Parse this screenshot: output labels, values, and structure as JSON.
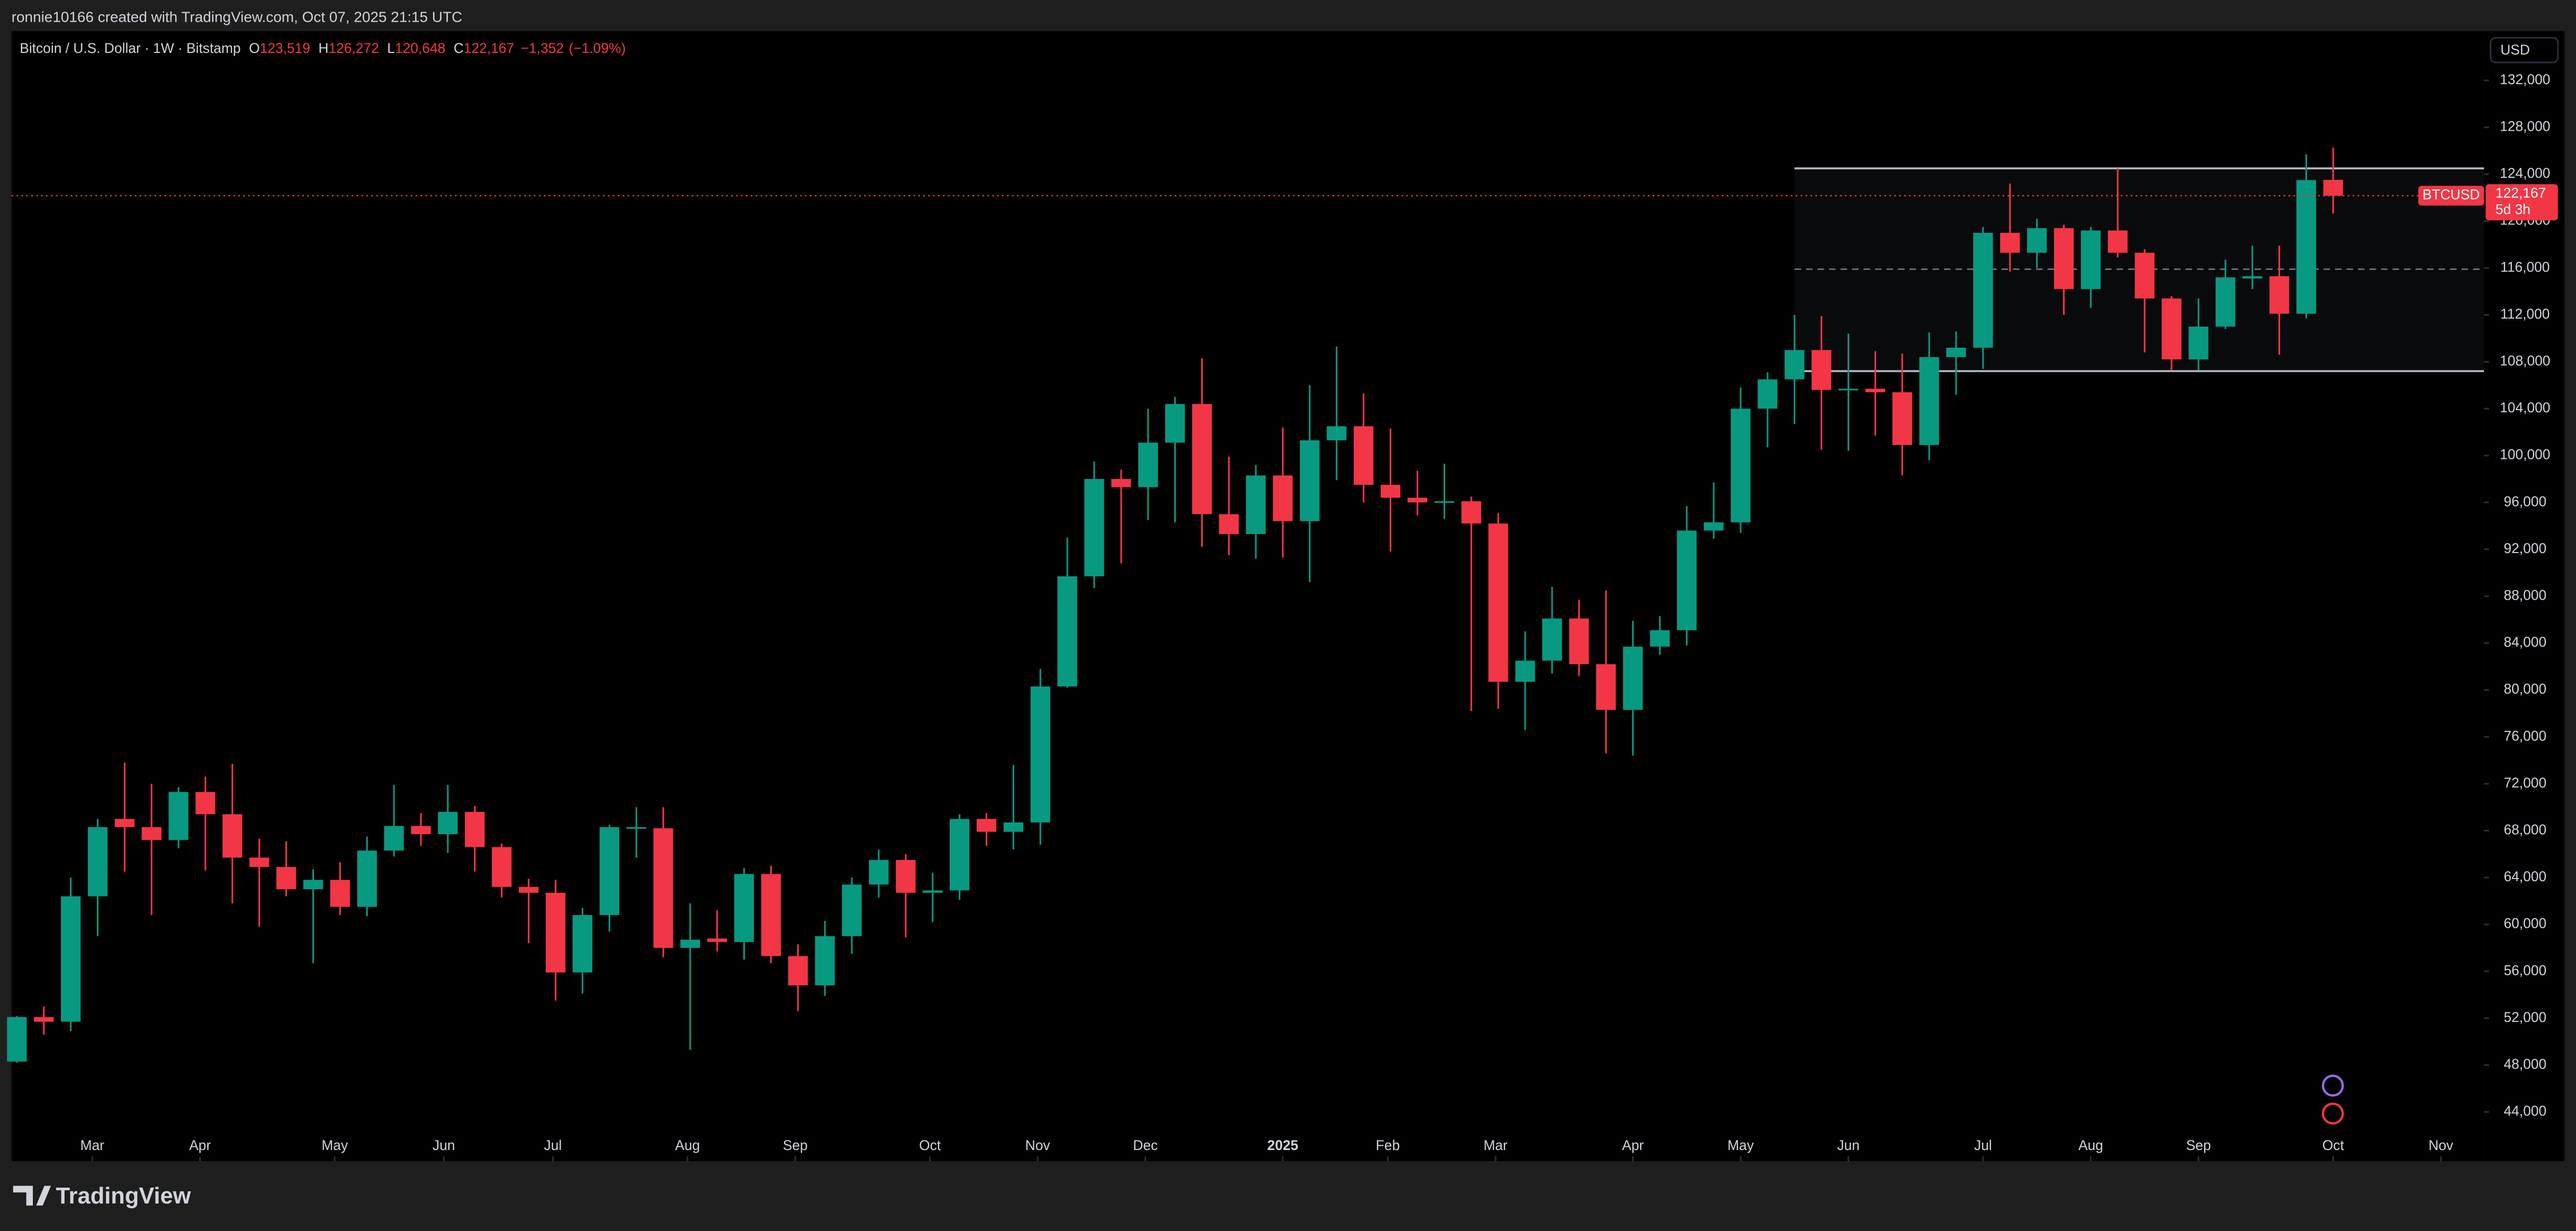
{
  "header": {
    "credit": "ronnie10166 created with TradingView.com, Oct 07, 2025 21:15 UTC"
  },
  "legend": {
    "symbol": "Bitcoin / U.S. Dollar · 1W · Bitstamp",
    "ohlc": [
      {
        "key": "O",
        "value": 123519,
        "label": "123,519"
      },
      {
        "key": "H",
        "value": 126272,
        "label": "126,272"
      },
      {
        "key": "L",
        "value": 120648,
        "label": "120,648"
      },
      {
        "key": "C",
        "value": 122167,
        "label": "122,167"
      }
    ],
    "change": {
      "value": -1352,
      "label": "−1,352"
    },
    "change_pct": {
      "value": -1.09,
      "label": "(−1.09%)"
    }
  },
  "currency_button": "USD",
  "footer": {
    "logo": "TradingView"
  },
  "chart_data": {
    "type": "candlestick",
    "up_color": "#089981",
    "down_color": "#f23645",
    "xlim": [
      -0.2,
      91.6
    ],
    "xticks": [
      {
        "value": 2.8,
        "label": "Mar"
      },
      {
        "value": 6.8,
        "label": "Apr"
      },
      {
        "value": 11.8,
        "label": "May"
      },
      {
        "value": 15.85,
        "label": "Jun"
      },
      {
        "value": 19.9,
        "label": "Jul"
      },
      {
        "value": 24.9,
        "label": "Aug"
      },
      {
        "value": 28.9,
        "label": "Sep"
      },
      {
        "value": 33.9,
        "label": "Oct"
      },
      {
        "value": 37.9,
        "label": "Nov"
      },
      {
        "value": 41.9,
        "label": "Dec"
      },
      {
        "value": 47.0,
        "label": "2025"
      },
      {
        "value": 50.9,
        "label": "Feb"
      },
      {
        "value": 54.9,
        "label": "Mar"
      },
      {
        "value": 60.0,
        "label": "Apr"
      },
      {
        "value": 64.0,
        "label": "May"
      },
      {
        "value": 68.0,
        "label": "Jun"
      },
      {
        "value": 73.0,
        "label": "Jul"
      },
      {
        "value": 77.0,
        "label": "Aug"
      },
      {
        "value": 81.0,
        "label": "Sep"
      },
      {
        "value": 86.0,
        "label": "Oct"
      },
      {
        "value": 90.0,
        "label": "Nov"
      }
    ],
    "ylim": [
      39800,
      136200
    ],
    "yticks": [
      {
        "value": 44000,
        "label": "44,000"
      },
      {
        "value": 48000,
        "label": "48,000"
      },
      {
        "value": 52000,
        "label": "52,000"
      },
      {
        "value": 56000,
        "label": "56,000"
      },
      {
        "value": 60000,
        "label": "60,000"
      },
      {
        "value": 64000,
        "label": "64,000"
      },
      {
        "value": 68000,
        "label": "68,000"
      },
      {
        "value": 72000,
        "label": "72,000"
      },
      {
        "value": 76000,
        "label": "76,000"
      },
      {
        "value": 80000,
        "label": "80,000"
      },
      {
        "value": 84000,
        "label": "84,000"
      },
      {
        "value": 88000,
        "label": "88,000"
      },
      {
        "value": 92000,
        "label": "92,000"
      },
      {
        "value": 96000,
        "label": "96,000"
      },
      {
        "value": 100000,
        "label": "100,000"
      },
      {
        "value": 104000,
        "label": "104,000"
      },
      {
        "value": 108000,
        "label": "108,000"
      },
      {
        "value": 112000,
        "label": "112,000"
      },
      {
        "value": 116000,
        "label": "116,000"
      },
      {
        "value": 120000,
        "label": "120,000"
      },
      {
        "value": 124000,
        "label": "124,000"
      },
      {
        "value": 128000,
        "label": "128,000"
      },
      {
        "value": 132000,
        "label": "132,000"
      }
    ],
    "open": [
      48300,
      52100,
      51700,
      62400,
      69000,
      68300,
      67200,
      71300,
      69400,
      65700,
      64900,
      63000,
      63800,
      61500,
      66300,
      68400,
      67700,
      69600,
      66600,
      63200,
      62700,
      55900,
      60800,
      68200,
      68200,
      58000,
      58800,
      58500,
      64300,
      57300,
      54800,
      59000,
      63400,
      65500,
      62700,
      62900,
      69000,
      67900,
      68700,
      80300,
      89700,
      98000,
      97300,
      101100,
      104400,
      95000,
      93300,
      98300,
      94400,
      101300,
      102500,
      97500,
      96400,
      96000,
      96100,
      94200,
      80700,
      82500,
      86100,
      82200,
      78300,
      83700,
      85100,
      93600,
      94300,
      104000,
      106500,
      109000,
      105600,
      105700,
      105400,
      100900,
      108400,
      109200,
      119000,
      117300,
      119400,
      114200,
      119200,
      117300,
      113400,
      108200,
      111000,
      115100,
      115300,
      112100,
      123519
    ],
    "high": [
      52200,
      53000,
      64000,
      69000,
      73800,
      72000,
      71700,
      72600,
      73700,
      67300,
      67100,
      64700,
      65300,
      67500,
      71900,
      69500,
      71900,
      70100,
      66900,
      63900,
      63800,
      61400,
      68500,
      70000,
      70000,
      61800,
      61200,
      64800,
      65000,
      58300,
      60300,
      64000,
      66400,
      66000,
      64400,
      69400,
      69500,
      73600,
      81800,
      93000,
      99500,
      98800,
      104000,
      105000,
      108300,
      99900,
      99200,
      102400,
      106000,
      109300,
      105300,
      102300,
      98700,
      99300,
      96500,
      95100,
      85000,
      88800,
      87700,
      88500,
      85900,
      86300,
      95700,
      97700,
      105800,
      107100,
      112000,
      111900,
      110400,
      108900,
      108700,
      110500,
      110600,
      119500,
      123200,
      120200,
      119700,
      119500,
      124500,
      117600,
      113600,
      113400,
      116700,
      117900,
      117900,
      125700,
      126272
    ],
    "low": [
      48200,
      50600,
      50900,
      59000,
      64500,
      60800,
      66500,
      64600,
      61800,
      59800,
      62400,
      56700,
      60800,
      60700,
      65800,
      66700,
      66100,
      64500,
      62300,
      58400,
      53500,
      54100,
      59400,
      65700,
      57200,
      49300,
      57700,
      57000,
      56700,
      52600,
      53900,
      57500,
      62300,
      58900,
      60200,
      62100,
      66700,
      66400,
      66800,
      80200,
      88700,
      90800,
      94500,
      94300,
      92200,
      91500,
      91200,
      91300,
      89200,
      97900,
      96000,
      91800,
      94900,
      94600,
      78200,
      78400,
      76600,
      81400,
      81200,
      74600,
      74400,
      83000,
      83800,
      92900,
      93400,
      100700,
      102700,
      100500,
      100400,
      101700,
      98300,
      99600,
      105200,
      107400,
      115700,
      116000,
      112000,
      112600,
      116900,
      108800,
      107300,
      107300,
      110800,
      114200,
      108600,
      111700,
      120648
    ],
    "close": [
      52100,
      51700,
      62400,
      68300,
      68300,
      67200,
      71300,
      69400,
      65700,
      64900,
      63000,
      63800,
      61500,
      66300,
      68400,
      67700,
      69600,
      66600,
      63200,
      62700,
      55900,
      60800,
      68300,
      68300,
      58000,
      58700,
      58500,
      64300,
      57300,
      54800,
      59000,
      63400,
      65500,
      62700,
      62900,
      69000,
      67900,
      68700,
      80300,
      89700,
      98000,
      97300,
      101100,
      104400,
      95000,
      93300,
      98300,
      94400,
      101300,
      102500,
      97500,
      96400,
      96000,
      96100,
      94200,
      80700,
      82500,
      86100,
      82200,
      78300,
      83700,
      85100,
      93600,
      94300,
      104000,
      106500,
      109000,
      105600,
      105700,
      105400,
      100900,
      108400,
      109200,
      119000,
      117300,
      119400,
      114200,
      119200,
      117300,
      113400,
      108200,
      111000,
      115200,
      115300,
      112100,
      123500,
      122167
    ],
    "price_line": {
      "symbol": "BTCUSD",
      "value": 122167,
      "label": "122,167",
      "countdown": "5d 3h"
    },
    "range_box": {
      "top": 124500,
      "middle": 115900,
      "bottom": 107200,
      "start": 66
    }
  }
}
